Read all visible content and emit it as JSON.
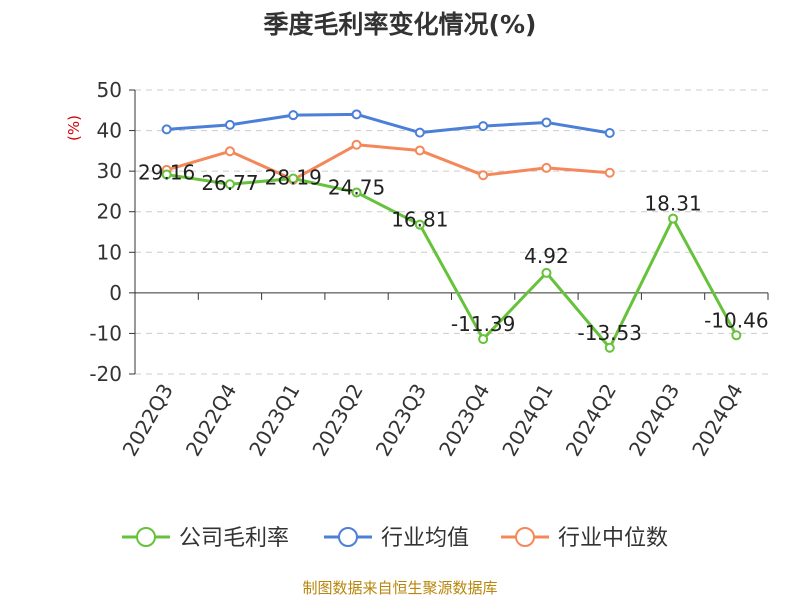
{
  "chart_data": {
    "type": "line",
    "title": "季度毛利率变化情况(%)",
    "ylabel": "(%)",
    "ylim": [
      -20,
      50
    ],
    "yticks": [
      50,
      40,
      30,
      20,
      10,
      0,
      -10,
      -20
    ],
    "grid": "horizontal dashed",
    "legend_position": "bottom",
    "categories": [
      "2022Q3",
      "2022Q4",
      "2023Q1",
      "2023Q2",
      "2023Q3",
      "2023Q4",
      "2024Q1",
      "2024Q2",
      "2024Q3",
      "2024Q4"
    ],
    "series": [
      {
        "name": "公司毛利率",
        "color": "#66c23a",
        "values": [
          29.16,
          26.77,
          28.19,
          24.75,
          16.81,
          -11.39,
          4.92,
          -13.53,
          18.31,
          -10.46
        ],
        "labels": [
          "29.16",
          "26.77",
          "28.19",
          "24.75",
          "16.81",
          "-11.39",
          "4.92",
          "-13.53",
          "18.31",
          "-10.46"
        ]
      },
      {
        "name": "行业均值",
        "color": "#4c7fd8",
        "values": [
          40.3,
          41.4,
          43.8,
          44.0,
          39.5,
          41.1,
          42.0,
          39.4,
          null,
          null
        ]
      },
      {
        "name": "行业中位数",
        "color": "#f4885a",
        "values": [
          30.3,
          34.9,
          27.9,
          36.5,
          35.1,
          29.0,
          30.8,
          29.6,
          null,
          null
        ]
      }
    ]
  },
  "footer": {
    "source": "制图数据来自恒生聚源数据库"
  }
}
